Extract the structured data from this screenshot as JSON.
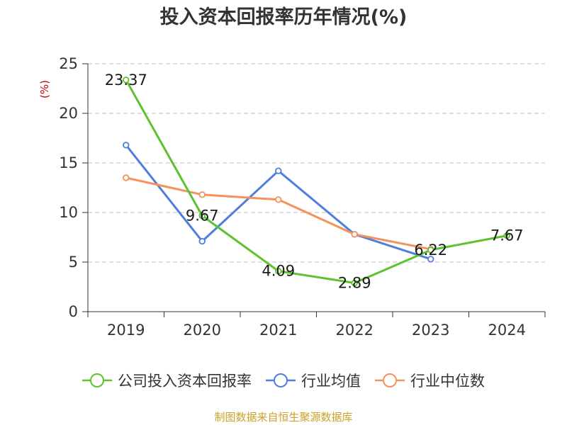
{
  "chart_data": {
    "type": "line",
    "title": "投入资本回报率历年情况(%)",
    "ylabel": "(%)",
    "xlabel": "",
    "categories": [
      "2019",
      "2020",
      "2021",
      "2022",
      "2023",
      "2024"
    ],
    "ylim": [
      0,
      25
    ],
    "yticks": [
      0,
      5,
      10,
      15,
      20,
      25
    ],
    "grid": true,
    "legend_position": "bottom",
    "series": [
      {
        "name": "公司投入资本回报率",
        "color": "#5dc22f",
        "values": [
          23.37,
          9.67,
          4.09,
          2.89,
          6.22,
          7.67
        ],
        "labels": [
          "23.37",
          "9.67",
          "4.09",
          "2.89",
          "6.22",
          "7.67"
        ]
      },
      {
        "name": "行业均值",
        "color": "#4e7fdc",
        "values": [
          16.8,
          7.1,
          14.2,
          7.8,
          5.3,
          null
        ]
      },
      {
        "name": "行业中位数",
        "color": "#f4915c",
        "values": [
          13.5,
          11.8,
          11.3,
          7.8,
          6.3,
          null
        ]
      }
    ]
  },
  "colors": {
    "title": "#333333",
    "unit": "#cc0000",
    "axis": "#333333",
    "grid": "#cccccc",
    "source": "#c9a227"
  },
  "source": "制图数据来自恒生聚源数据库"
}
